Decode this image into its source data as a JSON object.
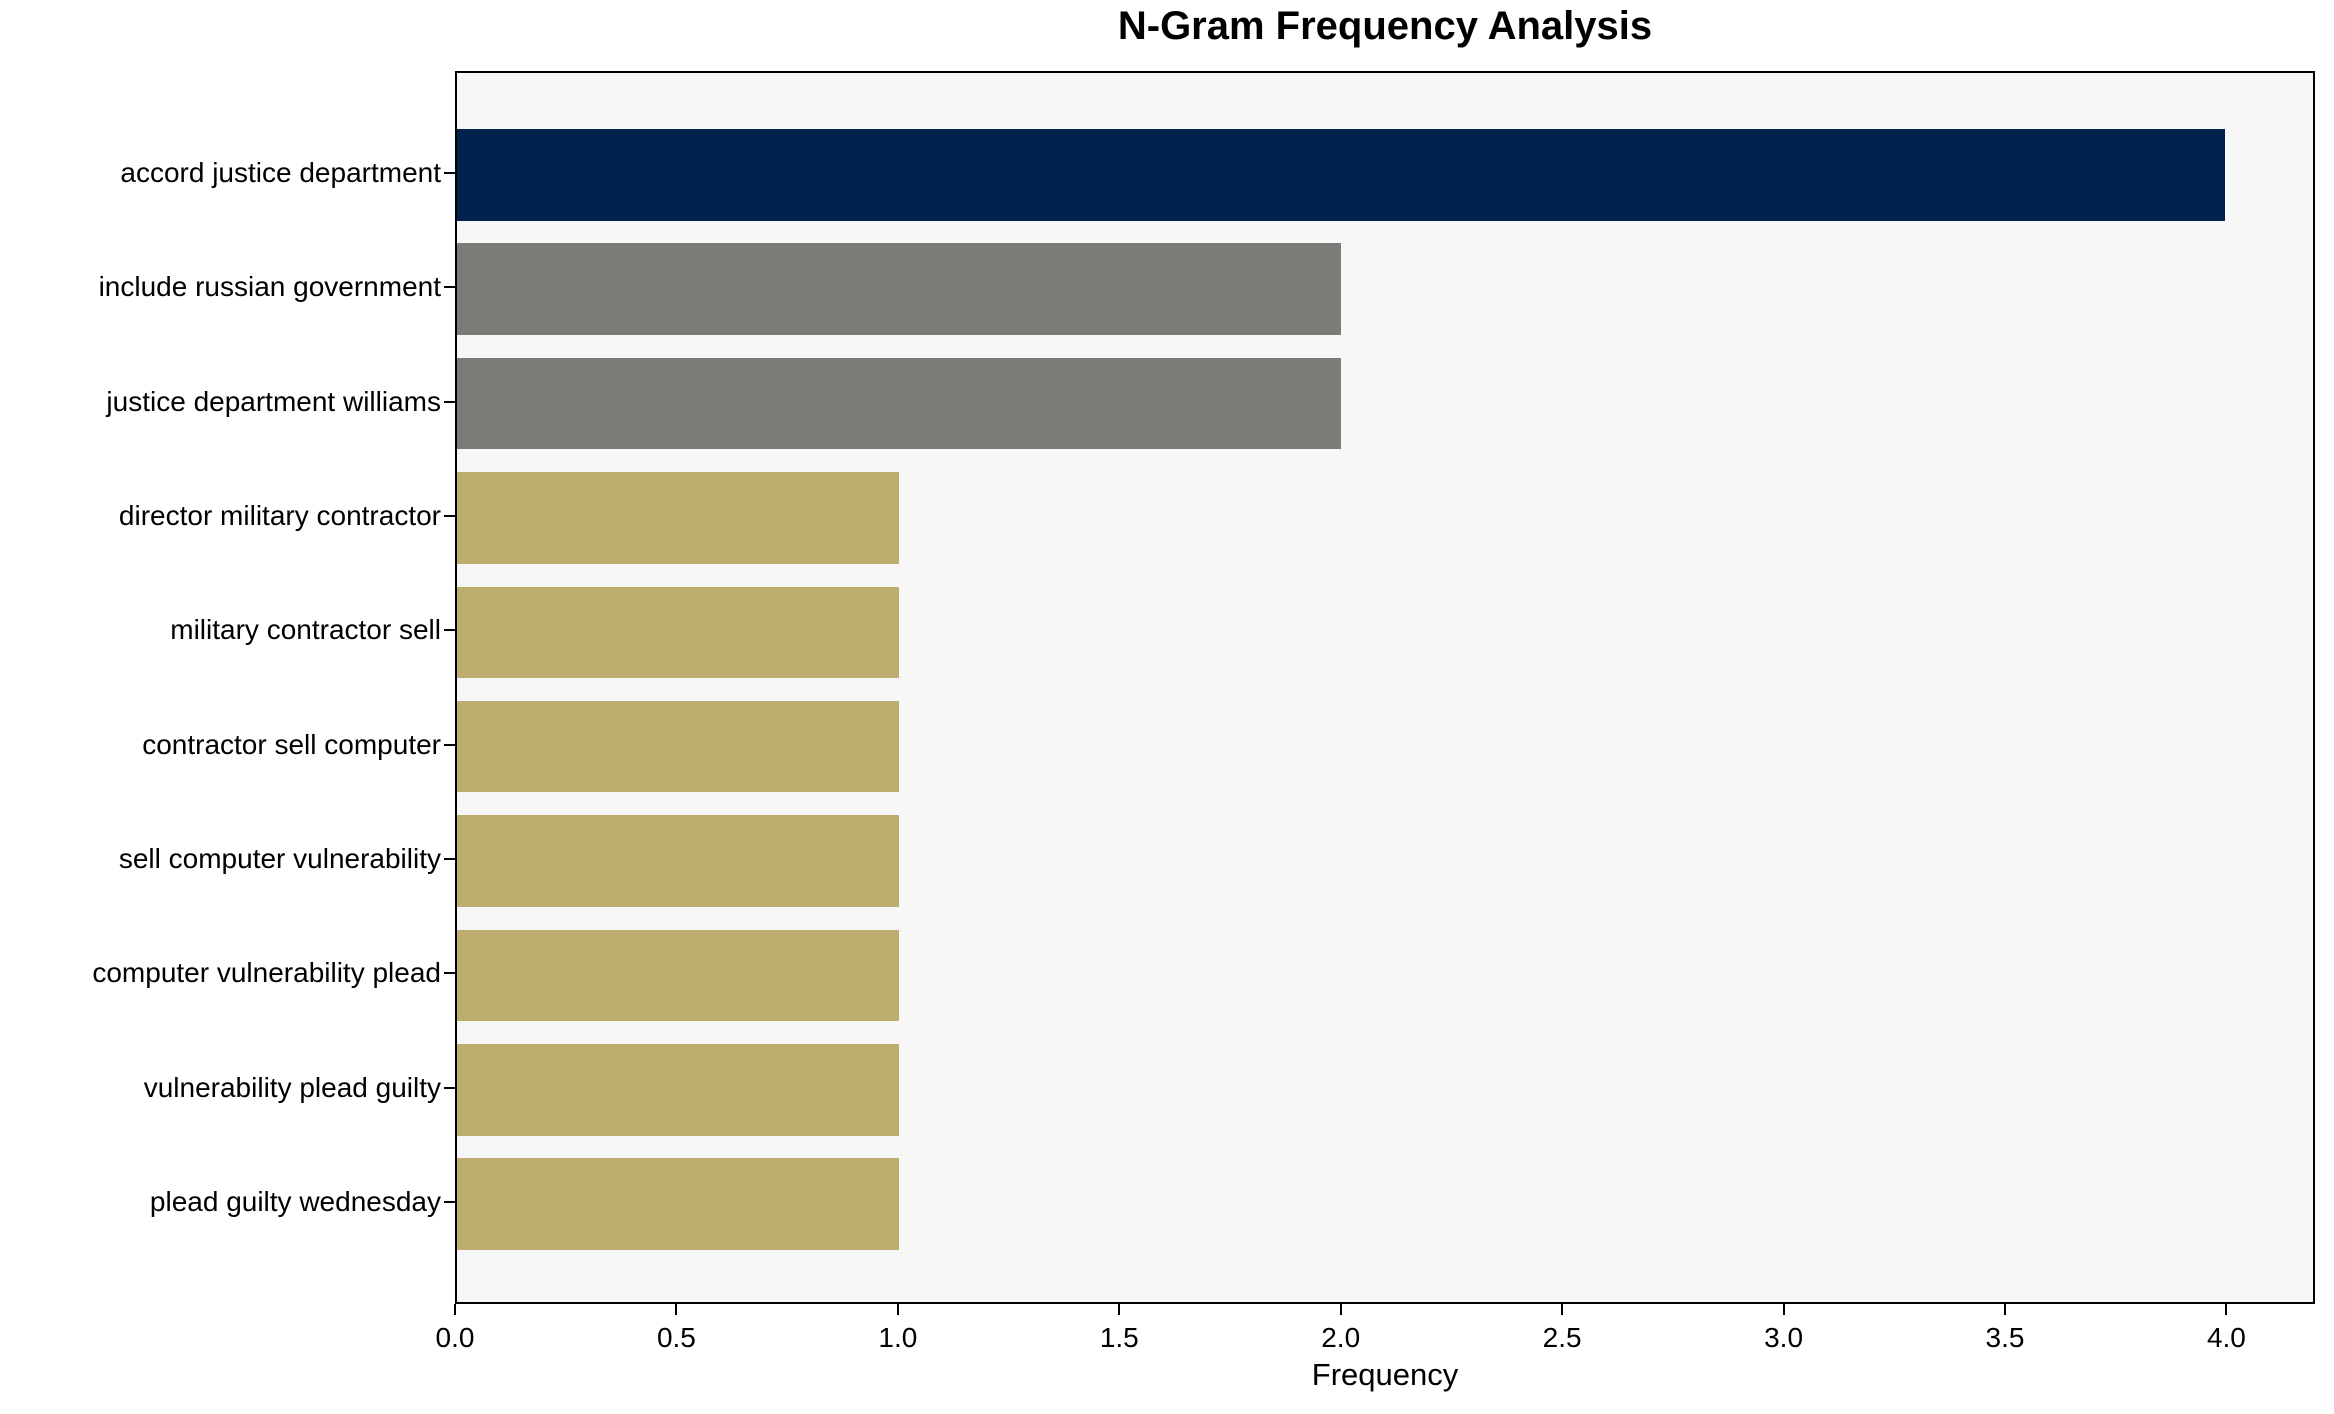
{
  "chart_data": {
    "type": "bar",
    "orientation": "horizontal",
    "title": "N-Gram Frequency Analysis",
    "xlabel": "Frequency",
    "ylabel": "",
    "categories": [
      "accord justice department",
      "include russian government",
      "justice department williams",
      "director military contractor",
      "military contractor sell",
      "contractor sell computer",
      "sell computer vulnerability",
      "computer vulnerability plead",
      "vulnerability plead guilty",
      "plead guilty wednesday"
    ],
    "values": [
      4,
      2,
      2,
      1,
      1,
      1,
      1,
      1,
      1,
      1
    ],
    "bar_colors": [
      "#00234d",
      "#7b7b77",
      "#7b7b77",
      "#bcad6e",
      "#bcad6e",
      "#bcad6e",
      "#bcad6e",
      "#bcad6e",
      "#bcad6e",
      "#bcad6e"
    ],
    "xlim": [
      0,
      4.2
    ],
    "xtick_values": [
      0,
      0.5,
      1,
      1.5,
      2,
      2.5,
      3,
      3.5,
      4
    ],
    "xtick_labels": [
      "0.0",
      "0.5",
      "1.0",
      "1.5",
      "2.0",
      "2.5",
      "3.0",
      "3.5",
      "4.0"
    ],
    "grid": false,
    "legend_position": "none",
    "plot_background": "#f8f7f7",
    "figure_background": "#ffffff",
    "axis_color": "#000000",
    "text_color": "#000000",
    "bar_height_fraction": 0.8
  }
}
